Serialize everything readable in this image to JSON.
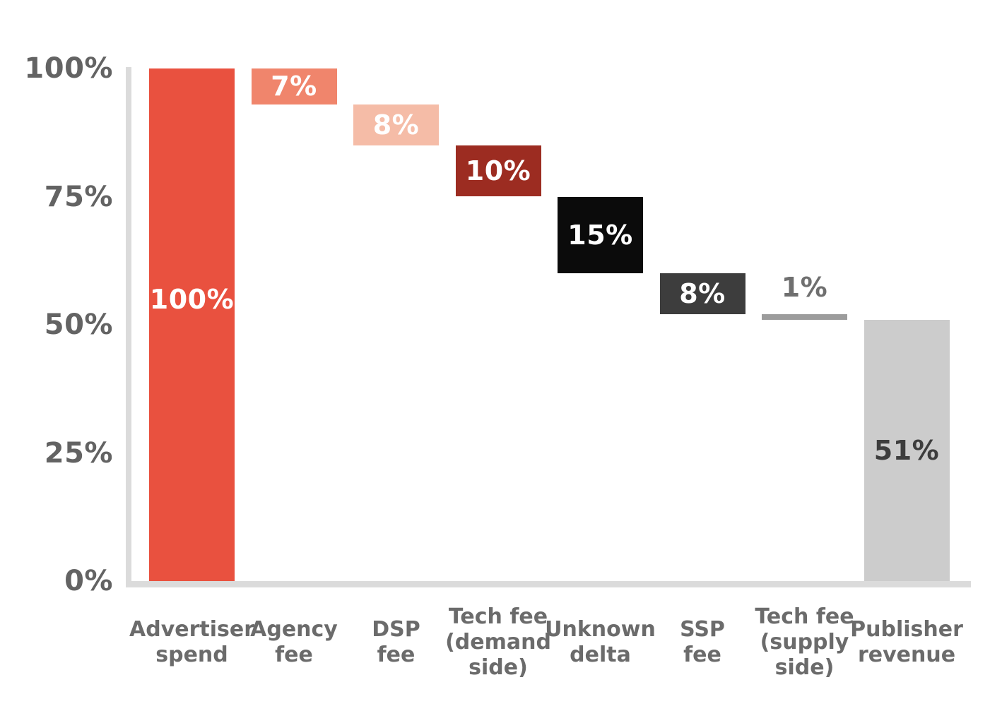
{
  "chart_data": {
    "type": "bar",
    "subtype": "waterfall",
    "title": "",
    "xlabel": "",
    "ylabel": "",
    "ylim": [
      0,
      100
    ],
    "grid": false,
    "legend": false,
    "axis_color": "#DBDBDB",
    "tick_label_color": "#636363",
    "category_label_color": "#6B6B6B",
    "y_ticks": [
      {
        "label": "100%",
        "value": 100
      },
      {
        "label": "75%",
        "value": 75
      },
      {
        "label": "50%",
        "value": 50
      },
      {
        "label": "25%",
        "value": 25
      },
      {
        "label": "0%",
        "value": 0
      }
    ],
    "categories": [
      "Advertiser spend",
      "Agency fee",
      "DSP fee",
      "Tech fee (demand side)",
      "Unknown delta",
      "SSP fee",
      "Tech fee (supply side)",
      "Publisher revenue"
    ],
    "bars": [
      {
        "name": "advertiser-spend",
        "category_lines": "Advertiser\nspend",
        "value": 100,
        "display": "100%",
        "from": 0,
        "to": 100,
        "color": "#E9513F",
        "label_color": "#FFFFFF",
        "label_placement": "high"
      },
      {
        "name": "agency-fee",
        "category_lines": "Agency\nfee",
        "value": -7,
        "display": "7%",
        "from": 93,
        "to": 100,
        "color": "#F0856C",
        "label_color": "#FFFFFF",
        "label_placement": "center"
      },
      {
        "name": "dsp-fee",
        "category_lines": "DSP\nfee",
        "value": -8,
        "display": "8%",
        "from": 85,
        "to": 93,
        "color": "#F5BCA7",
        "label_color": "#FFFFFF",
        "label_placement": "center"
      },
      {
        "name": "tech-fee-demand-side",
        "category_lines": "Tech fee\n(demand\nside)",
        "value": -10,
        "display": "10%",
        "from": 75,
        "to": 85,
        "color": "#9C2C21",
        "label_color": "#FFFFFF",
        "label_placement": "center"
      },
      {
        "name": "unknown-delta",
        "category_lines": "Unknown\ndelta",
        "value": -15,
        "display": "15%",
        "from": 60,
        "to": 75,
        "color": "#0B0B0B",
        "label_color": "#FFFFFF",
        "label_placement": "center"
      },
      {
        "name": "ssp-fee",
        "category_lines": "SSP\nfee",
        "value": -8,
        "display": "8%",
        "from": 52,
        "to": 60,
        "color": "#3D3D3D",
        "label_color": "#FFFFFF",
        "label_placement": "center"
      },
      {
        "name": "tech-fee-supply-side",
        "category_lines": "Tech fee\n(supply\nside)",
        "value": -1,
        "display": "1%",
        "from": 51,
        "to": 52,
        "color": "#9C9C9C",
        "label_color": "#6F6F6F",
        "label_placement": "above"
      },
      {
        "name": "publisher-revenue",
        "category_lines": "Publisher\nrevenue",
        "value": 51,
        "display": "51%",
        "from": 0,
        "to": 51,
        "color": "#CCCCCC",
        "label_color": "#3D3D3D",
        "label_placement": "center"
      }
    ]
  }
}
